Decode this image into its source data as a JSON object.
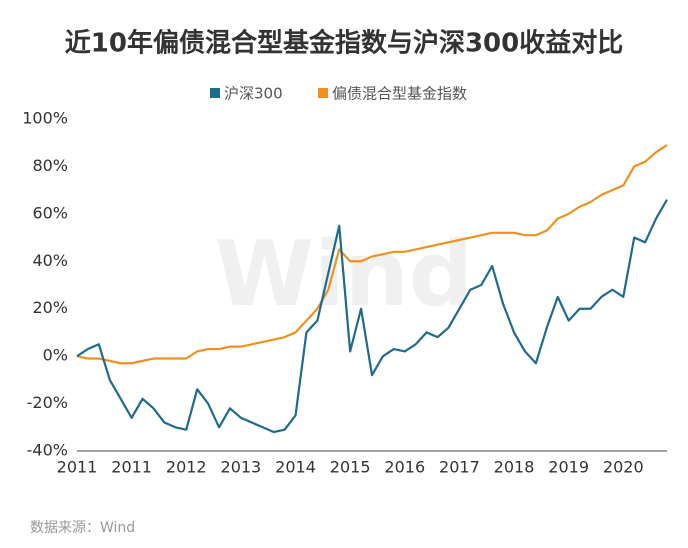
{
  "chart_data": {
    "type": "line",
    "title": "近10年偏债混合型基金指数与沪深300收益对比",
    "source": "数据来源：Wind",
    "watermark": "Wind",
    "categories": [
      "2011",
      null,
      null,
      null,
      null,
      "2011",
      null,
      null,
      null,
      null,
      "2012",
      null,
      null,
      null,
      null,
      "2013",
      null,
      null,
      null,
      null,
      "2014",
      null,
      null,
      null,
      null,
      "2015",
      null,
      null,
      null,
      null,
      "2016",
      null,
      null,
      null,
      null,
      "2017",
      null,
      null,
      null,
      null,
      "2018",
      null,
      null,
      null,
      null,
      "2019",
      null,
      null,
      null,
      null,
      "2020",
      null,
      null,
      null,
      null
    ],
    "series": [
      {
        "name": "沪深300",
        "color": "#1f6b8e",
        "values": [
          0,
          3,
          5,
          -10,
          -18,
          -26,
          -18,
          -22,
          -28,
          -30,
          -31,
          -14,
          -20,
          -30,
          -22,
          -26,
          -28,
          -30,
          -32,
          -31,
          -25,
          10,
          15,
          35,
          55,
          2,
          20,
          -8,
          0,
          3,
          2,
          5,
          10,
          8,
          12,
          20,
          28,
          30,
          38,
          22,
          10,
          2,
          -3,
          12,
          25,
          15,
          20,
          20,
          25,
          28,
          25,
          50,
          48,
          58,
          66
        ]
      },
      {
        "name": "偏债混合型基金指数",
        "color": "#f0901f",
        "values": [
          0,
          -1,
          -1,
          -2,
          -3,
          -3,
          -2,
          -1,
          -1,
          -1,
          -1,
          2,
          3,
          3,
          4,
          4,
          5,
          6,
          7,
          8,
          10,
          15,
          20,
          28,
          45,
          40,
          40,
          42,
          43,
          44,
          44,
          45,
          46,
          47,
          48,
          49,
          50,
          51,
          52,
          52,
          52,
          51,
          51,
          53,
          58,
          60,
          63,
          65,
          68,
          70,
          72,
          80,
          82,
          86,
          89
        ]
      }
    ],
    "ylim": [
      -40,
      100
    ],
    "yticks": [
      {
        "value": -40,
        "label": "-40%"
      },
      {
        "value": -20,
        "label": "-20%"
      },
      {
        "value": 0,
        "label": "0%"
      },
      {
        "value": 20,
        "label": "20%"
      },
      {
        "value": 40,
        "label": "40%"
      },
      {
        "value": 60,
        "label": "60%"
      },
      {
        "value": 80,
        "label": "80%"
      },
      {
        "value": 100,
        "label": "100%"
      }
    ],
    "grid": false
  }
}
